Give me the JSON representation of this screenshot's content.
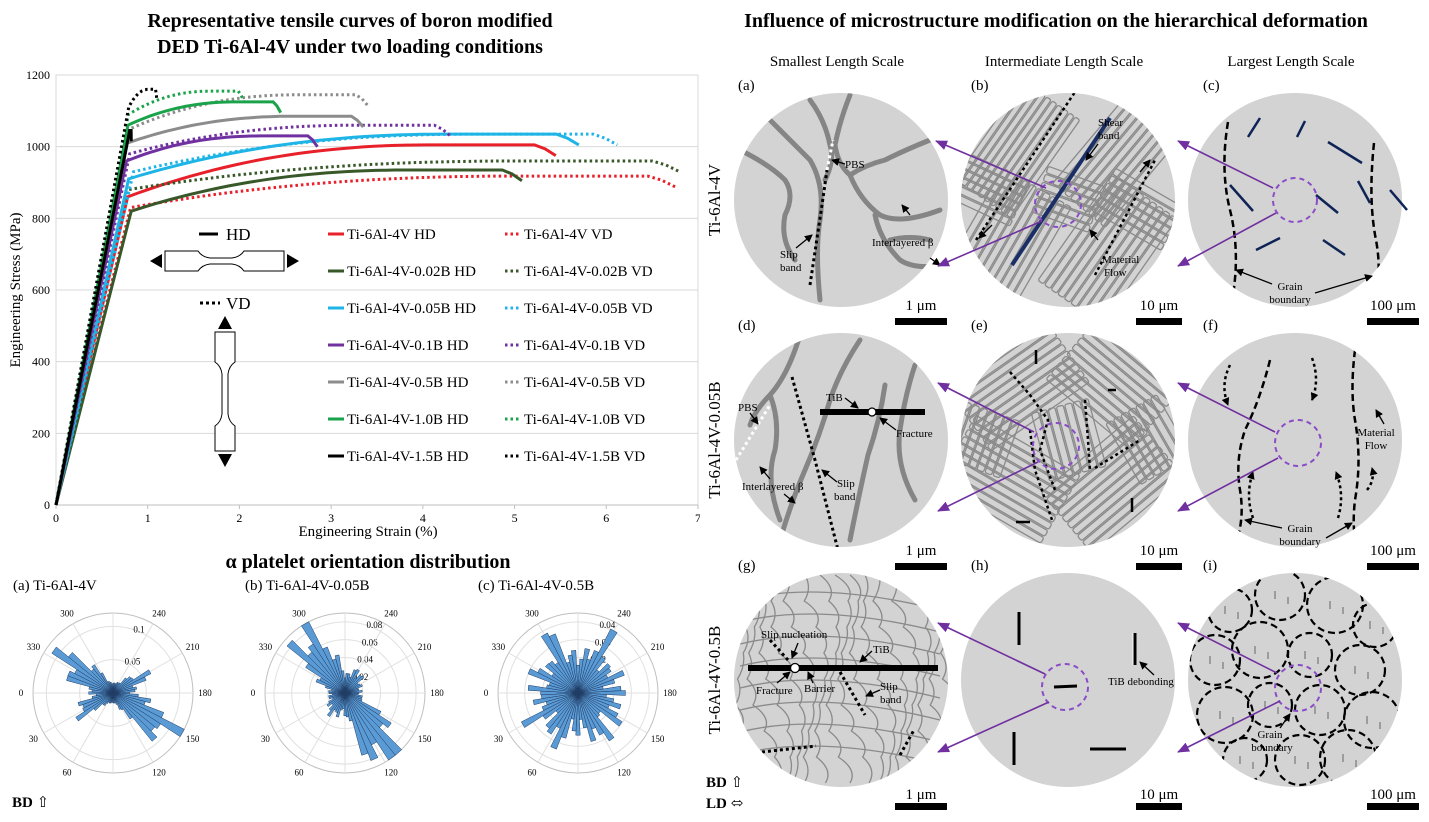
{
  "tensile": {
    "title_line1": "Representative tensile curves of boron modified",
    "title_line2": "DED Ti-6Al-4V under two loading conditions",
    "xlabel": "Engineering Strain (%)",
    "ylabel": "Engineering Stress (MPa)",
    "hd_label": "HD",
    "vd_label": "VD"
  },
  "polar": {
    "title": "α platelet orientation distribution",
    "bd_label": "BD ⇧",
    "plots": [
      {
        "label": "(a) Ti-6Al-4V",
        "rings": [
          "0.05",
          "0.1"
        ]
      },
      {
        "label": "(b) Ti-6Al-4V-0.05B",
        "rings": [
          "0.02",
          "0.04",
          "0.06",
          "0.08"
        ]
      },
      {
        "label": "(c) Ti-6Al-4V-0.5B",
        "rings": [
          "0.01",
          "0.02",
          "0.03",
          "0.04"
        ]
      }
    ],
    "angles": [
      "300",
      "240",
      "330",
      "210",
      "0",
      "180",
      "30",
      "150",
      "60",
      "120"
    ]
  },
  "hier": {
    "title": "Influence of microstructure modification on the hierarchical deformation",
    "col_titles": [
      "Smallest Length Scale",
      "Intermediate Length Scale",
      "Largest Length Scale"
    ],
    "row_labels": [
      "Ti-6Al-4V",
      "Ti-6Al-4V-0.05B",
      "Ti-6Al-4V-0.5B"
    ],
    "panel_labels": [
      "(a)",
      "(b)",
      "(c)",
      "(d)",
      "(e)",
      "(f)",
      "(g)",
      "(h)",
      "(i)"
    ],
    "scales": [
      "1 μm",
      "10 μm",
      "100 μm"
    ],
    "bd_label": "BD ⇧",
    "ld_label": "LD ⬄",
    "annotations": {
      "pbs": "PBS",
      "slip_band": "Slip",
      "slip_band2": "band",
      "interlayered": "Interlayered β",
      "shear": "Shear",
      "shear2": "band",
      "material_flow": "Material",
      "material_flow2": "Flow",
      "grain_boundary": "Grain",
      "grain_boundary2": "boundary",
      "tib": "TiB",
      "fracture": "Fracture",
      "slip_nucleation": "Slip nucleation",
      "barrier": "Barrier",
      "tib_debonding": "TiB debonding"
    }
  },
  "chart_data": {
    "type": "line",
    "title": "Representative tensile curves of boron modified DED Ti-6Al-4V under two loading conditions",
    "xlabel": "Engineering Strain (%)",
    "ylabel": "Engineering Stress (MPa)",
    "xlim": [
      0,
      7
    ],
    "ylim": [
      0,
      1200
    ],
    "xticks": [
      0,
      1,
      2,
      3,
      4,
      5,
      6,
      7
    ],
    "yticks": [
      0,
      200,
      400,
      600,
      800,
      1000,
      1200
    ],
    "legend_position": "right",
    "grid": "horizontal",
    "series": [
      {
        "name": "Ti-6Al-4V HD",
        "style": "solid",
        "color": "#e8202a",
        "E": 1.1,
        "yield": 860,
        "uts": 1005,
        "end": 5.45
      },
      {
        "name": "Ti-6Al-4V VD",
        "style": "dotted",
        "color": "#e8202a",
        "E": 1.02,
        "yield": 830,
        "uts": 918,
        "end": 6.75
      },
      {
        "name": "Ti-6Al-4V-0.02B HD",
        "style": "solid",
        "color": "#38582a",
        "E": 1.0,
        "yield": 820,
        "uts": 935,
        "end": 5.08
      },
      {
        "name": "Ti-6Al-4V-0.02B VD",
        "style": "dotted",
        "color": "#38582a",
        "E": 1.12,
        "yield": 880,
        "uts": 960,
        "end": 6.8
      },
      {
        "name": "Ti-6Al-4V-0.05B HD",
        "style": "solid",
        "color": "#1eb4e6",
        "E": 1.15,
        "yield": 910,
        "uts": 1035,
        "end": 5.7
      },
      {
        "name": "Ti-6Al-4V-0.05B VD",
        "style": "dotted",
        "color": "#1eb4e6",
        "E": 1.1,
        "yield": 930,
        "uts": 1035,
        "end": 6.12
      },
      {
        "name": "Ti-6Al-4V-0.1B HD",
        "style": "solid",
        "color": "#7030a0",
        "E": 1.25,
        "yield": 960,
        "uts": 1030,
        "end": 2.85
      },
      {
        "name": "Ti-6Al-4V-0.1B VD",
        "style": "dotted",
        "color": "#7030a0",
        "E": 1.22,
        "yield": 980,
        "uts": 1060,
        "end": 4.3
      },
      {
        "name": "Ti-6Al-4V-0.5B HD",
        "style": "solid",
        "color": "#8c8c8c",
        "E": 1.3,
        "yield": 1010,
        "uts": 1085,
        "end": 3.35
      },
      {
        "name": "Ti-6Al-4V-0.5B VD",
        "style": "dotted",
        "color": "#8c8c8c",
        "E": 1.3,
        "yield": 1050,
        "uts": 1145,
        "end": 3.4
      },
      {
        "name": "Ti-6Al-4V-1.0B HD",
        "style": "solid",
        "color": "#1aa34a",
        "E": 1.35,
        "yield": 1060,
        "uts": 1125,
        "end": 2.45
      },
      {
        "name": "Ti-6Al-4V-1.0B VD",
        "style": "dotted",
        "color": "#1aa34a",
        "E": 1.38,
        "yield": 1090,
        "uts": 1155,
        "end": 2.05
      },
      {
        "name": "Ti-6Al-4V-1.5B HD",
        "style": "solid",
        "color": "#000000",
        "E": 1.3,
        "yield": 1045,
        "uts": 1045,
        "end": 0.82
      },
      {
        "name": "Ti-6Al-4V-1.5B VD",
        "style": "dotted",
        "color": "#000000",
        "E": 1.4,
        "yield": 1110,
        "uts": 1160,
        "end": 1.1
      }
    ]
  }
}
